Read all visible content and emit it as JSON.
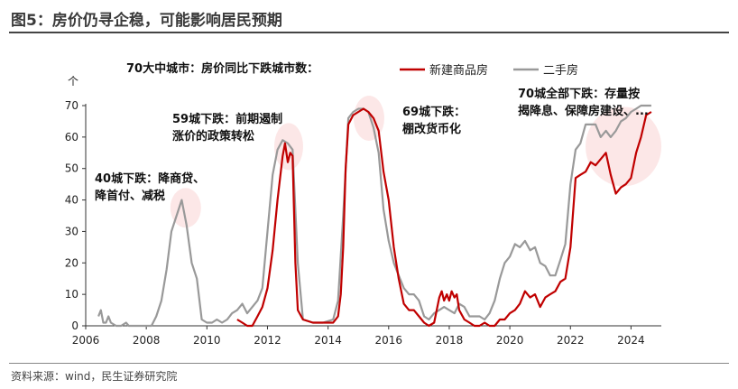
{
  "figure": {
    "title": "图5：房价仍寻企稳，可能影响居民预期",
    "source": "资料来源：wind，民生证券研究院"
  },
  "chart_data": {
    "type": "line",
    "title": "70大中城市：房价同比下跌城市数：",
    "ylabel": "个",
    "xlabel": "",
    "xlim": [
      2006,
      2025
    ],
    "ylim": [
      0,
      70
    ],
    "x_ticks": [
      "2006",
      "2008",
      "2010",
      "2012",
      "2014",
      "2016",
      "2018",
      "2020",
      "2022",
      "2024"
    ],
    "y_ticks": [
      "0",
      "10",
      "20",
      "30",
      "40",
      "50",
      "60",
      "70"
    ],
    "grid": false,
    "legend_position": "top-right",
    "series": [
      {
        "name": "新建商品房",
        "color": "#c00000",
        "points": [
          [
            2011.0,
            2
          ],
          [
            2011.17,
            1
          ],
          [
            2011.33,
            0
          ],
          [
            2011.5,
            0
          ],
          [
            2011.67,
            3
          ],
          [
            2011.83,
            6
          ],
          [
            2012.0,
            12
          ],
          [
            2012.17,
            24
          ],
          [
            2012.33,
            40
          ],
          [
            2012.5,
            54
          ],
          [
            2012.58,
            58
          ],
          [
            2012.67,
            52
          ],
          [
            2012.75,
            55
          ],
          [
            2012.83,
            54
          ],
          [
            2012.92,
            20
          ],
          [
            2013.0,
            5
          ],
          [
            2013.17,
            2
          ],
          [
            2013.5,
            1
          ],
          [
            2013.83,
            1
          ],
          [
            2014.17,
            1
          ],
          [
            2014.33,
            3
          ],
          [
            2014.42,
            10
          ],
          [
            2014.5,
            25
          ],
          [
            2014.58,
            50
          ],
          [
            2014.67,
            64
          ],
          [
            2014.83,
            67
          ],
          [
            2015.0,
            68
          ],
          [
            2015.17,
            69
          ],
          [
            2015.33,
            68
          ],
          [
            2015.5,
            66
          ],
          [
            2015.67,
            62
          ],
          [
            2015.83,
            49
          ],
          [
            2016.0,
            40
          ],
          [
            2016.17,
            25
          ],
          [
            2016.33,
            15
          ],
          [
            2016.5,
            7
          ],
          [
            2016.67,
            5
          ],
          [
            2016.83,
            5
          ],
          [
            2017.0,
            3
          ],
          [
            2017.17,
            1
          ],
          [
            2017.33,
            0
          ],
          [
            2017.5,
            1
          ],
          [
            2017.67,
            9
          ],
          [
            2017.75,
            11
          ],
          [
            2017.83,
            8
          ],
          [
            2017.92,
            10
          ],
          [
            2018.0,
            8
          ],
          [
            2018.08,
            11
          ],
          [
            2018.17,
            9
          ],
          [
            2018.25,
            10
          ],
          [
            2018.33,
            5
          ],
          [
            2018.5,
            2
          ],
          [
            2018.67,
            1
          ],
          [
            2018.83,
            0
          ],
          [
            2019.0,
            0
          ],
          [
            2019.17,
            1
          ],
          [
            2019.33,
            0
          ],
          [
            2019.5,
            0
          ],
          [
            2019.67,
            2
          ],
          [
            2019.83,
            2
          ],
          [
            2020.0,
            4
          ],
          [
            2020.17,
            5
          ],
          [
            2020.33,
            7
          ],
          [
            2020.5,
            11
          ],
          [
            2020.67,
            9
          ],
          [
            2020.83,
            10
          ],
          [
            2021.0,
            6
          ],
          [
            2021.17,
            9
          ],
          [
            2021.33,
            10
          ],
          [
            2021.5,
            11
          ],
          [
            2021.67,
            14
          ],
          [
            2021.83,
            15
          ],
          [
            2022.0,
            25
          ],
          [
            2022.17,
            47
          ],
          [
            2022.33,
            48
          ],
          [
            2022.5,
            49
          ],
          [
            2022.67,
            52
          ],
          [
            2022.83,
            51
          ],
          [
            2023.0,
            53
          ],
          [
            2023.17,
            55
          ],
          [
            2023.33,
            48
          ],
          [
            2023.5,
            42
          ],
          [
            2023.67,
            44
          ],
          [
            2023.83,
            45
          ],
          [
            2024.0,
            47
          ],
          [
            2024.17,
            55
          ],
          [
            2024.33,
            60
          ],
          [
            2024.5,
            67
          ],
          [
            2024.67,
            68
          ]
        ]
      },
      {
        "name": "二手房",
        "color": "#999999",
        "points": [
          [
            2006.42,
            3
          ],
          [
            2006.5,
            5
          ],
          [
            2006.58,
            1
          ],
          [
            2006.67,
            1
          ],
          [
            2006.75,
            3
          ],
          [
            2006.83,
            1
          ],
          [
            2007.0,
            0
          ],
          [
            2007.17,
            0
          ],
          [
            2007.33,
            1
          ],
          [
            2007.42,
            0
          ],
          [
            2007.67,
            0
          ],
          [
            2007.83,
            0
          ],
          [
            2008.0,
            0
          ],
          [
            2008.17,
            0
          ],
          [
            2008.33,
            3
          ],
          [
            2008.5,
            8
          ],
          [
            2008.67,
            18
          ],
          [
            2008.83,
            30
          ],
          [
            2009.0,
            35
          ],
          [
            2009.17,
            40
          ],
          [
            2009.33,
            32
          ],
          [
            2009.5,
            20
          ],
          [
            2009.67,
            15
          ],
          [
            2009.83,
            2
          ],
          [
            2010.0,
            1
          ],
          [
            2010.17,
            1
          ],
          [
            2010.33,
            2
          ],
          [
            2010.5,
            1
          ],
          [
            2010.67,
            2
          ],
          [
            2010.83,
            4
          ],
          [
            2011.0,
            5
          ],
          [
            2011.17,
            7
          ],
          [
            2011.33,
            4
          ],
          [
            2011.5,
            6
          ],
          [
            2011.67,
            8
          ],
          [
            2011.83,
            12
          ],
          [
            2012.0,
            30
          ],
          [
            2012.17,
            48
          ],
          [
            2012.33,
            56
          ],
          [
            2012.5,
            59
          ],
          [
            2012.67,
            58
          ],
          [
            2012.83,
            56
          ],
          [
            2013.0,
            20
          ],
          [
            2013.17,
            2
          ],
          [
            2013.5,
            1
          ],
          [
            2013.83,
            1
          ],
          [
            2014.17,
            2
          ],
          [
            2014.33,
            8
          ],
          [
            2014.5,
            35
          ],
          [
            2014.67,
            66
          ],
          [
            2014.83,
            68
          ],
          [
            2015.0,
            69
          ],
          [
            2015.17,
            69
          ],
          [
            2015.33,
            68
          ],
          [
            2015.5,
            63
          ],
          [
            2015.67,
            55
          ],
          [
            2015.83,
            37
          ],
          [
            2016.0,
            27
          ],
          [
            2016.17,
            20
          ],
          [
            2016.33,
            16
          ],
          [
            2016.5,
            12
          ],
          [
            2016.67,
            10
          ],
          [
            2016.83,
            10
          ],
          [
            2017.0,
            8
          ],
          [
            2017.17,
            3
          ],
          [
            2017.33,
            2
          ],
          [
            2017.5,
            4
          ],
          [
            2017.67,
            5
          ],
          [
            2017.83,
            6
          ],
          [
            2018.0,
            5
          ],
          [
            2018.17,
            4
          ],
          [
            2018.33,
            7
          ],
          [
            2018.5,
            6
          ],
          [
            2018.67,
            3
          ],
          [
            2018.83,
            3
          ],
          [
            2019.0,
            3
          ],
          [
            2019.17,
            2
          ],
          [
            2019.33,
            4
          ],
          [
            2019.5,
            8
          ],
          [
            2019.67,
            15
          ],
          [
            2019.83,
            20
          ],
          [
            2020.0,
            22
          ],
          [
            2020.17,
            26
          ],
          [
            2020.33,
            25
          ],
          [
            2020.5,
            27
          ],
          [
            2020.67,
            24
          ],
          [
            2020.83,
            25
          ],
          [
            2021.0,
            20
          ],
          [
            2021.17,
            19
          ],
          [
            2021.33,
            16
          ],
          [
            2021.5,
            16
          ],
          [
            2021.67,
            21
          ],
          [
            2021.83,
            26
          ],
          [
            2022.0,
            45
          ],
          [
            2022.17,
            56
          ],
          [
            2022.33,
            58
          ],
          [
            2022.5,
            64
          ],
          [
            2022.67,
            64
          ],
          [
            2022.83,
            64
          ],
          [
            2023.0,
            60
          ],
          [
            2023.17,
            62
          ],
          [
            2023.33,
            60
          ],
          [
            2023.5,
            62
          ],
          [
            2023.67,
            65
          ],
          [
            2023.83,
            66
          ],
          [
            2024.0,
            68
          ],
          [
            2024.17,
            69
          ],
          [
            2024.33,
            70
          ],
          [
            2024.5,
            70
          ],
          [
            2024.67,
            70
          ]
        ]
      }
    ],
    "annotations": [
      {
        "lines": [
          "40城下跌：降商贷、",
          "降首付、减税"
        ],
        "x": 2009.3,
        "y": 37.5
      },
      {
        "lines": [
          "59城下跌：前期遏制",
          "涨价的政策转松"
        ],
        "x": 2012.7,
        "y": 57
      },
      {
        "lines": [
          "69城下跌：",
          "棚改货币化"
        ],
        "x": 2015.35,
        "y": 66
      },
      {
        "lines": [
          "70城全部下跌：存量按",
          "揭降息、保障房建设、..."
        ],
        "x": 2023.75,
        "y": 57
      }
    ]
  }
}
